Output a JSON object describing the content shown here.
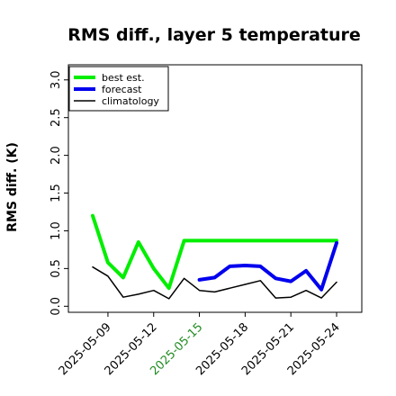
{
  "chart_data": {
    "type": "line",
    "title": "RMS diff., layer 5 temperature",
    "xlabel": "",
    "ylabel": "RMS diff. (K)",
    "ylim": [
      -0.08,
      3.2
    ],
    "yticks": [
      0.0,
      0.5,
      1.0,
      1.5,
      2.0,
      2.5,
      3.0
    ],
    "ytick_labels": [
      "0.0",
      "0.5",
      "1.0",
      "1.5",
      "2.0",
      "2.5",
      "3.0"
    ],
    "x": [
      "2025-05-08",
      "2025-05-09",
      "2025-05-10",
      "2025-05-11",
      "2025-05-12",
      "2025-05-13",
      "2025-05-14",
      "2025-05-15",
      "2025-05-16",
      "2025-05-17",
      "2025-05-18",
      "2025-05-19",
      "2025-05-20",
      "2025-05-21",
      "2025-05-22",
      "2025-05-23",
      "2025-05-24"
    ],
    "xticks": [
      {
        "date": "2025-05-09",
        "label": "2025-05-09",
        "color": "#000000"
      },
      {
        "date": "2025-05-12",
        "label": "2025-05-12",
        "color": "#000000"
      },
      {
        "date": "2025-05-15",
        "label": "2025-05-15",
        "color": "#228b22"
      },
      {
        "date": "2025-05-18",
        "label": "2025-05-18",
        "color": "#000000"
      },
      {
        "date": "2025-05-21",
        "label": "2025-05-21",
        "color": "#000000"
      },
      {
        "date": "2025-05-24",
        "label": "2025-05-24",
        "color": "#000000"
      }
    ],
    "series": [
      {
        "name": "best est.",
        "color": "#00ee00",
        "values": [
          1.2,
          0.58,
          0.38,
          0.85,
          0.5,
          0.24,
          0.87,
          null,
          null,
          null,
          null,
          null,
          null,
          null,
          null,
          null,
          0.87
        ]
      },
      {
        "name": "forecast",
        "color": "#0000ee",
        "values": [
          null,
          null,
          null,
          null,
          null,
          null,
          null,
          0.35,
          0.38,
          0.53,
          0.54,
          0.53,
          0.37,
          0.33,
          0.47,
          0.22,
          0.84
        ]
      },
      {
        "name": "climatology",
        "color": "#000000",
        "values": [
          0.52,
          0.4,
          0.12,
          0.16,
          0.21,
          0.1,
          0.37,
          0.21,
          0.19,
          0.24,
          0.29,
          0.34,
          0.11,
          0.12,
          0.21,
          0.11,
          0.32
        ]
      }
    ],
    "legend": "top-left",
    "grid": false
  }
}
